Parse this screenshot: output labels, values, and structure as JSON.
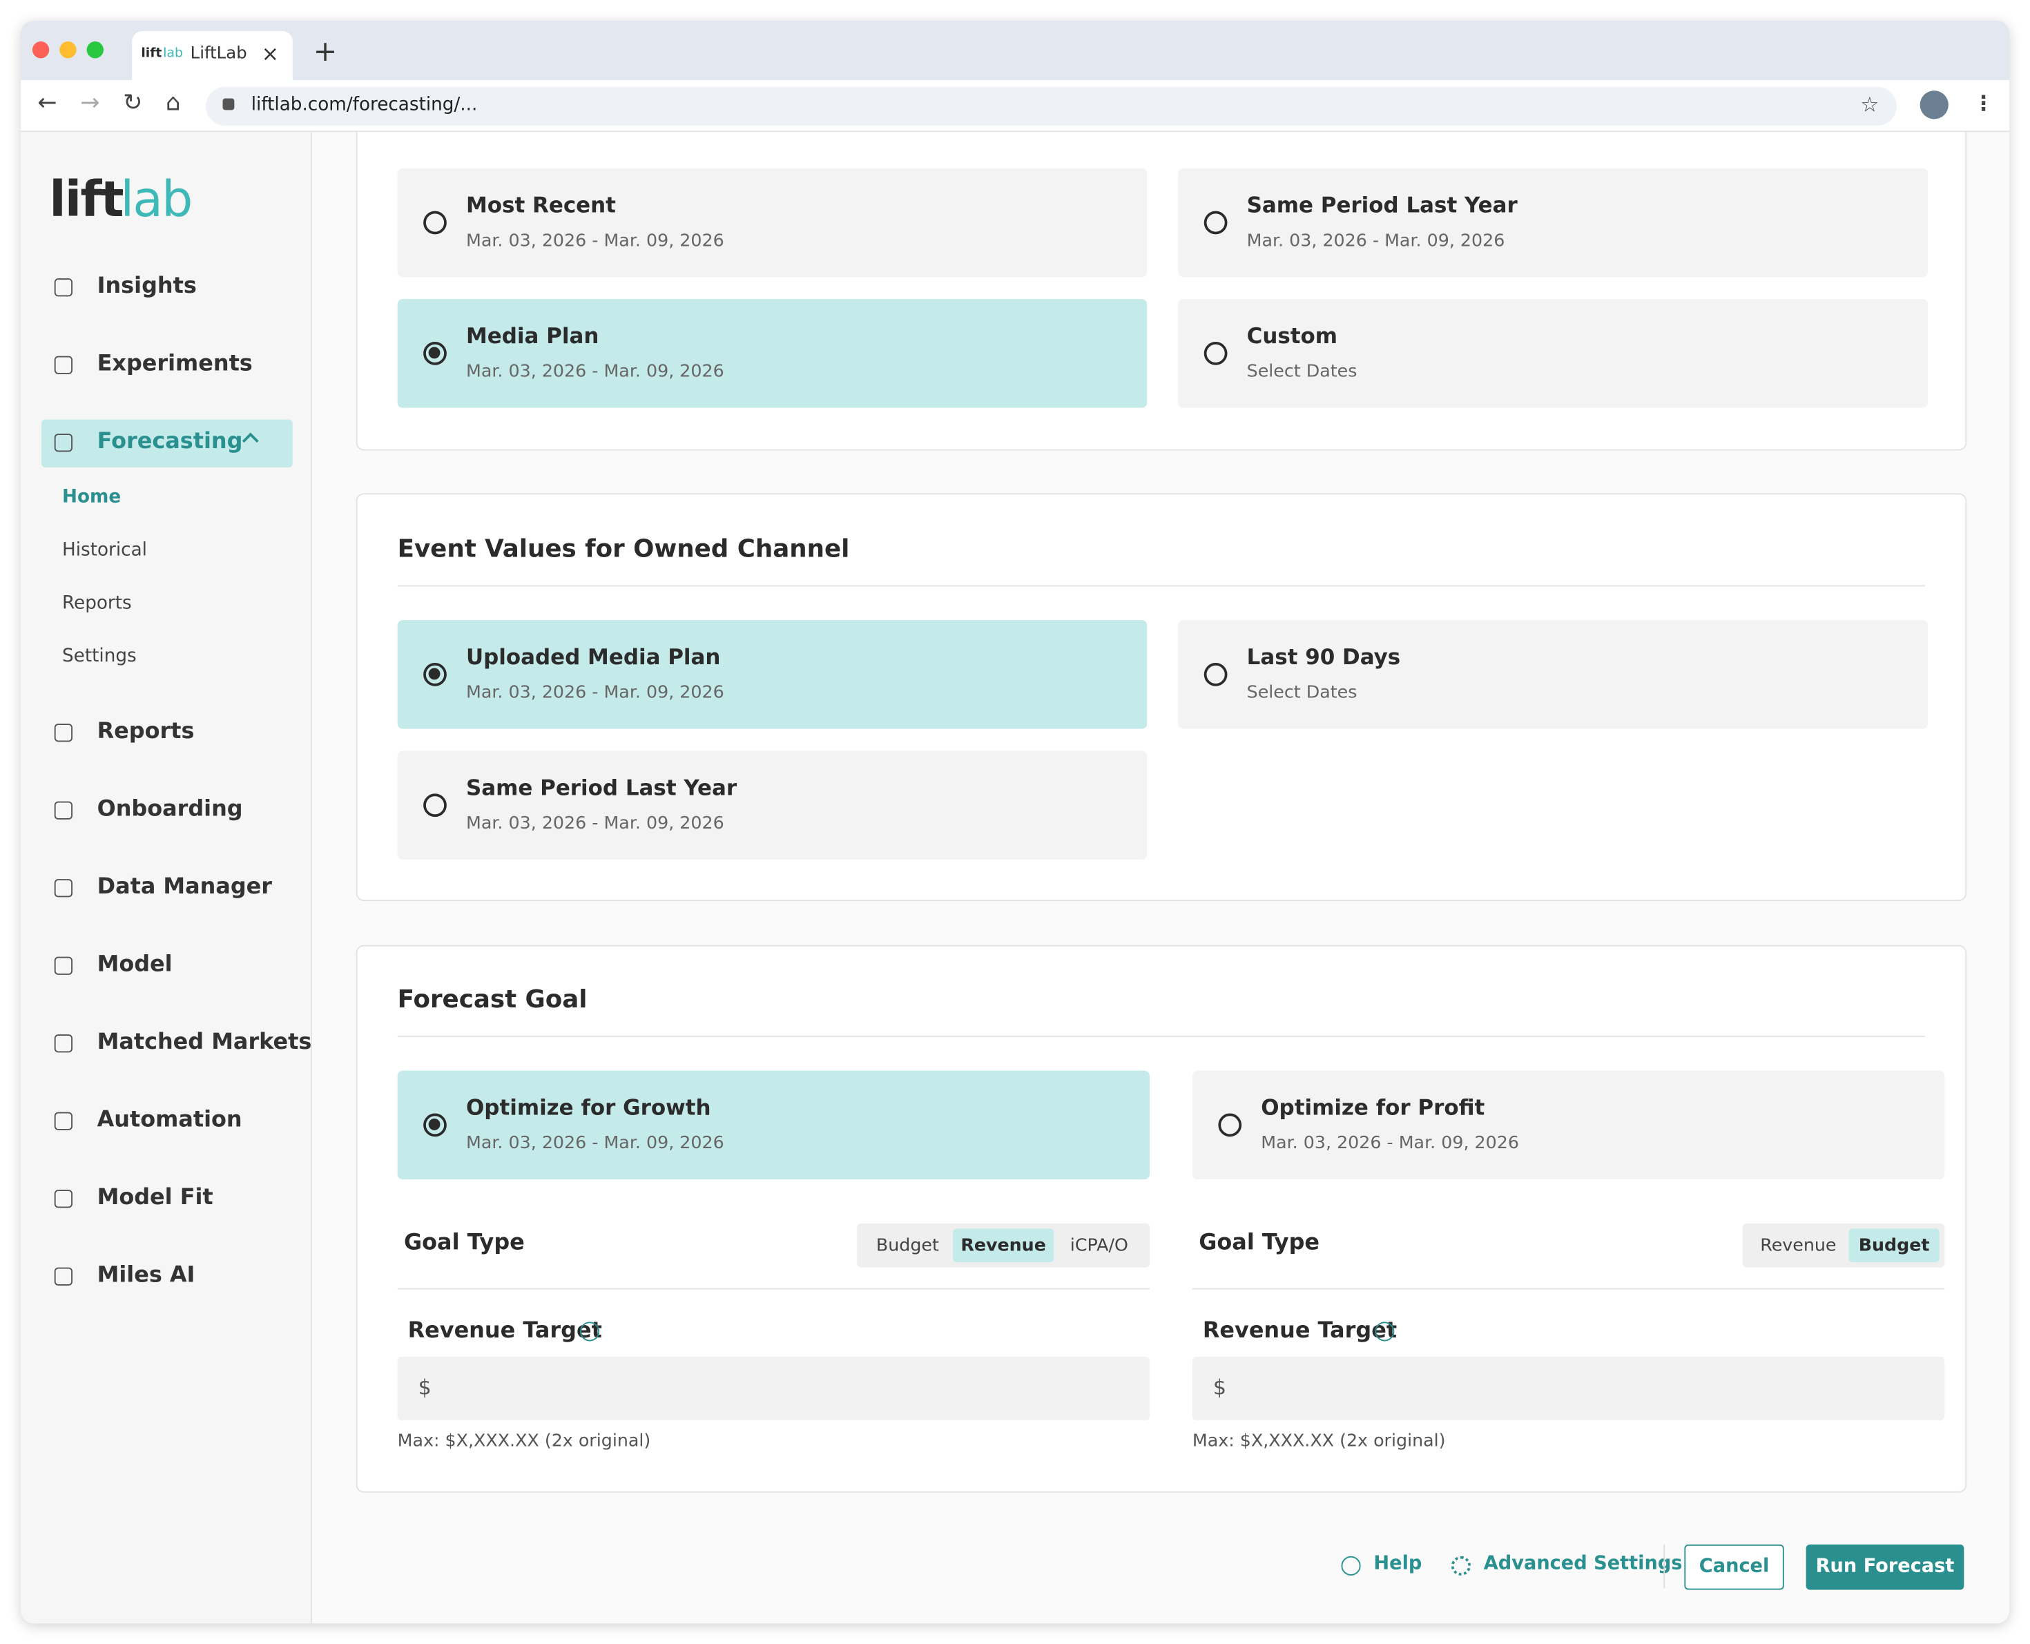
{
  "browser": {
    "tab_logo": [
      "lift",
      "lab"
    ],
    "tab_title": "LiftLab",
    "url": "liftlab.com/forecasting/..."
  },
  "sidebar": {
    "logo": [
      "lift",
      "lab"
    ],
    "nav": [
      {
        "label": "Insights"
      },
      {
        "label": "Experiments"
      },
      {
        "label": "Forecasting",
        "active": true,
        "children": [
          {
            "label": "Home",
            "active": true
          },
          {
            "label": "Historical"
          },
          {
            "label": "Reports"
          },
          {
            "label": "Settings"
          }
        ]
      },
      {
        "label": "Reports"
      },
      {
        "label": "Onboarding"
      },
      {
        "label": "Data Manager"
      },
      {
        "label": "Model"
      },
      {
        "label": "Matched Markets"
      },
      {
        "label": "Automation"
      },
      {
        "label": "Model Fit"
      },
      {
        "label": "Miles AI"
      }
    ]
  },
  "sections": [
    {
      "options": [
        {
          "label": "Most Recent",
          "sublabel": "Mar. 03, 2026 - Mar. 09, 2026"
        },
        {
          "label": "Same Period Last Year",
          "sublabel": "Mar. 03, 2026 - Mar. 09, 2026"
        },
        {
          "label": "Media Plan",
          "sublabel": "Mar. 03, 2026 - Mar. 09, 2026",
          "selected": true
        },
        {
          "label": "Custom",
          "sublabel": "Select Dates"
        }
      ]
    },
    {
      "title": "Event Values for Owned Channel",
      "options": [
        {
          "label": "Uploaded Media Plan",
          "sublabel": "Mar. 03, 2026 - Mar. 09, 2026",
          "selected": true
        },
        {
          "label": "Last 90 Days",
          "sublabel": "Select Dates"
        },
        {
          "label": "Same Period Last Year",
          "sublabel": "Mar. 03, 2026 - Mar. 09, 2026"
        }
      ]
    },
    {
      "title": "Forecast Goal",
      "options": [
        {
          "label": "Optimize for Growth",
          "sublabel": "Mar. 03, 2026 - Mar. 09, 2026",
          "selected": true
        },
        {
          "label": "Optimize for Profit",
          "sublabel": "Mar. 03, 2026 - Mar. 09, 2026"
        }
      ],
      "goals": [
        {
          "goal_type_label": "Goal Type",
          "segments": [
            "Budget",
            "Revenue",
            "iCPA/O"
          ],
          "active_segment": 1,
          "target_label": "Revenue Target",
          "currency": "$",
          "note": "Max: $X,XXX.XX (2x original)"
        },
        {
          "goal_type_label": "Goal Type",
          "segments": [
            "Revenue",
            "Budget"
          ],
          "active_segment": 1,
          "target_label": "Revenue Target",
          "currency": "$",
          "note": "Max: $X,XXX.XX (2x original)"
        }
      ]
    }
  ],
  "footer": {
    "help": "Help",
    "advanced": "Advanced Settings",
    "cancel": "Cancel",
    "run": "Run Forecast"
  }
}
